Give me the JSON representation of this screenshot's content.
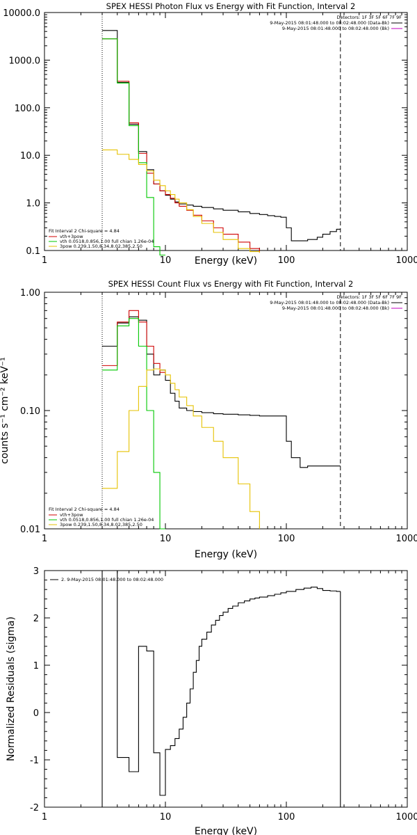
{
  "chart_data": [
    {
      "type": "line",
      "step": true,
      "title": "SPEX HESSI Photon Flux vs Energy with Fit Function, Interval 2",
      "xlabel": "Energy (keV)",
      "ylabel": "",
      "xscale": "log",
      "yscale": "log",
      "xlim": [
        1,
        1000
      ],
      "ylim": [
        0.1,
        10000
      ],
      "xticks": [
        "1",
        "10",
        "100",
        "1000"
      ],
      "yticks": [
        "0.1",
        "1.0",
        "10.0",
        "100.0",
        "1000.0",
        "10000.0"
      ],
      "vlines": [
        {
          "x": 3,
          "style": "dotted"
        },
        {
          "x": 280,
          "style": "dashed"
        }
      ],
      "legend_top": {
        "line1": "Detectors: 1F 3F 5F 6F 7F 9F",
        "line2": "9-May-2015 08:01:48.000 to 08:02:48.000 (Data-Bk)",
        "line3": "9-May-2015 08:01:48.000 to 08:02:48.000 (Bk)"
      },
      "legend_fit": {
        "header": "Fit Interval 2   Chi-square = 4.84",
        "items": [
          "vth+3pow",
          "vth 0.0518,0.856,1.00  full chian 1.26e-04",
          "3pow 0.239,1.50,8.34,8.02,385,2.50"
        ]
      },
      "series": [
        {
          "name": "9-May-2015 08:01:48.000 to 08:02:48.000 (Data-Bk)",
          "color": "#000000",
          "x": [
            3,
            4,
            5,
            6,
            7,
            8,
            9,
            10,
            11,
            12,
            13,
            15,
            17,
            20,
            25,
            30,
            40,
            50,
            60,
            70,
            80,
            90,
            100,
            110,
            130,
            150,
            180,
            200,
            230,
            260,
            280
          ],
          "y": [
            4200,
            340,
            45,
            12,
            5.0,
            2.5,
            1.8,
            1.45,
            1.2,
            1.05,
            0.95,
            0.9,
            0.85,
            0.8,
            0.75,
            0.7,
            0.65,
            0.6,
            0.57,
            0.54,
            0.52,
            0.5,
            0.3,
            0.16,
            0.16,
            0.17,
            0.19,
            0.22,
            0.25,
            0.28,
            0.28
          ]
        },
        {
          "name": "vth+3pow",
          "color": "#d00000",
          "x": [
            3,
            4,
            5,
            6,
            7,
            8,
            9,
            10,
            11,
            12,
            13,
            15,
            17,
            20,
            25,
            30,
            40,
            50,
            60
          ],
          "y": [
            2800,
            360,
            48,
            11,
            4.2,
            2.5,
            1.8,
            1.5,
            1.25,
            1.0,
            0.85,
            0.7,
            0.55,
            0.42,
            0.3,
            0.22,
            0.15,
            0.11,
            0.09
          ]
        },
        {
          "name": "vth 0.0518,0.856,1.00  full chian 1.26e-04",
          "color": "#00c800",
          "x": [
            3,
            4,
            5,
            6,
            7,
            8,
            9,
            10
          ],
          "y": [
            2800,
            330,
            42,
            7.0,
            1.3,
            0.12,
            0.08,
            0.08
          ]
        },
        {
          "name": "3pow 0.239,1.50,8.34,8.02,385,2.50",
          "color": "#e6c200",
          "x": [
            3,
            4,
            5,
            6,
            7,
            8,
            9,
            10,
            11,
            12,
            13,
            15,
            17,
            20,
            25,
            30,
            40,
            50,
            60
          ],
          "y": [
            13,
            10.5,
            8.2,
            6.4,
            4.7,
            3.0,
            2.3,
            1.8,
            1.5,
            1.2,
            1.0,
            0.72,
            0.52,
            0.37,
            0.24,
            0.17,
            0.11,
            0.095,
            0.09
          ]
        }
      ]
    },
    {
      "type": "line",
      "step": true,
      "title": "SPEX HESSI Count Flux vs Energy with Fit Function, Interval 2",
      "xlabel": "Energy (keV)",
      "ylabel": "counts s⁻¹ cm⁻² keV⁻¹",
      "xscale": "log",
      "yscale": "log",
      "xlim": [
        1,
        1000
      ],
      "ylim": [
        0.01,
        1.0
      ],
      "xticks": [
        "1",
        "10",
        "100",
        "1000"
      ],
      "yticks": [
        "0.01",
        "0.10",
        "1.00"
      ],
      "vlines": [
        {
          "x": 3,
          "style": "dotted"
        },
        {
          "x": 280,
          "style": "dashed"
        }
      ],
      "legend_top": {
        "line1": "Detectors: 1F 3F 5F 6F 7F 9F",
        "line2": "9-May-2015 08:01:48.000 to 08:02:48.000 (Data-Bk)",
        "line3": "9-May-2015 08:01:48.000 to 08:02:48.000 (Bk)"
      },
      "legend_fit": {
        "header": "Fit Interval 2   Chi-square = 4.84",
        "items": [
          "vth+3pow",
          "vth 0.0518,0.856,1.00  full chian 1.26e-04",
          "3pow 0.239,1.50,8.34,8.02,385,2.50"
        ]
      },
      "series": [
        {
          "name": "9-May-2015 08:01:48.000 to 08:02:48.000 (Data-Bk)",
          "color": "#000000",
          "x": [
            3,
            4,
            5,
            6,
            7,
            8,
            9,
            10,
            11,
            12,
            13,
            15,
            17,
            20,
            25,
            30,
            40,
            50,
            60,
            70,
            80,
            90,
            100,
            110,
            130,
            150,
            180,
            200,
            230,
            260,
            280
          ],
          "y": [
            0.35,
            0.55,
            0.62,
            0.58,
            0.3,
            0.2,
            0.22,
            0.18,
            0.14,
            0.12,
            0.105,
            0.1,
            0.098,
            0.096,
            0.094,
            0.093,
            0.092,
            0.091,
            0.09,
            0.09,
            0.09,
            0.09,
            0.055,
            0.04,
            0.033,
            0.034,
            0.034,
            0.034,
            0.034,
            0.034,
            0.034
          ]
        },
        {
          "name": "vth+3pow",
          "color": "#d00000",
          "x": [
            3,
            4,
            5,
            6,
            7,
            8,
            9,
            10
          ],
          "y": [
            0.24,
            0.56,
            0.7,
            0.56,
            0.35,
            0.25,
            0.21,
            0.2
          ]
        },
        {
          "name": "vth 0.0518,0.856,1.00  full chian 1.26e-04",
          "color": "#00c800",
          "x": [
            3,
            4,
            5,
            6,
            7,
            8,
            9,
            10
          ],
          "y": [
            0.22,
            0.52,
            0.6,
            0.35,
            0.1,
            0.03,
            0.01,
            0.01
          ]
        },
        {
          "name": "3pow 0.239,1.50,8.34,8.02,385,2.50",
          "color": "#e6c200",
          "x": [
            3,
            4,
            5,
            6,
            7,
            8,
            9,
            10,
            11,
            12,
            13,
            15,
            17,
            20,
            25,
            30,
            40,
            50,
            60
          ],
          "y": [
            0.022,
            0.045,
            0.1,
            0.16,
            0.22,
            0.225,
            0.22,
            0.2,
            0.17,
            0.15,
            0.13,
            0.11,
            0.09,
            0.072,
            0.055,
            0.04,
            0.024,
            0.014,
            0.01
          ]
        }
      ]
    },
    {
      "type": "line",
      "step": true,
      "title": "",
      "xlabel": "Energy (keV)",
      "ylabel": "Normalized Residuals (sigma)",
      "xscale": "log",
      "yscale": "linear",
      "xlim": [
        1,
        1000
      ],
      "ylim": [
        -2,
        3
      ],
      "xticks": [
        "1",
        "10",
        "100",
        "1000"
      ],
      "yticks": [
        "-2",
        "-1",
        "0",
        "1",
        "2",
        "3"
      ],
      "legend": "2.  9-May-2015 08:01:48.000 to 08:02:48.000",
      "series": [
        {
          "name": "2.  9-May-2015 08:01:48.000 to 08:02:48.000",
          "color": "#000000",
          "x": [
            3,
            4,
            5,
            6,
            7,
            8,
            9,
            10,
            11,
            12,
            13,
            14,
            15,
            16,
            17,
            18,
            19,
            20,
            22,
            24,
            26,
            28,
            30,
            33,
            36,
            40,
            45,
            50,
            55,
            60,
            70,
            80,
            90,
            100,
            120,
            140,
            160,
            180,
            200,
            230,
            260,
            280
          ],
          "y": [
            3.0,
            -0.95,
            -1.25,
            1.4,
            1.3,
            -0.85,
            -1.75,
            -0.78,
            -0.7,
            -0.55,
            -0.35,
            -0.1,
            0.2,
            0.5,
            0.85,
            1.1,
            1.4,
            1.55,
            1.7,
            1.85,
            1.95,
            2.05,
            2.12,
            2.2,
            2.25,
            2.32,
            2.36,
            2.4,
            2.42,
            2.44,
            2.47,
            2.5,
            2.53,
            2.56,
            2.6,
            2.63,
            2.65,
            2.62,
            2.58,
            2.57,
            2.56,
            2.56
          ]
        }
      ]
    }
  ]
}
